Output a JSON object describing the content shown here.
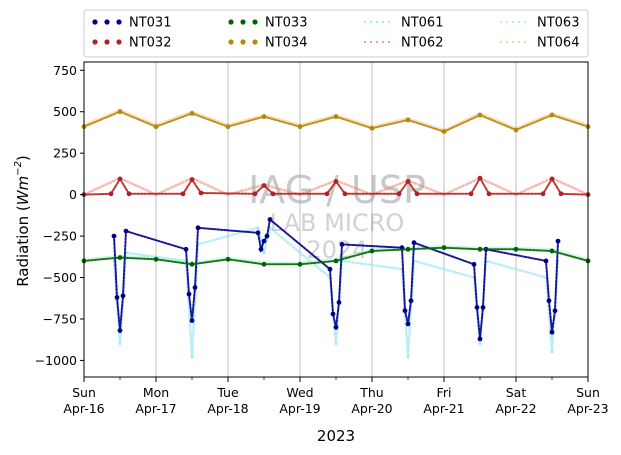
{
  "chart_data": {
    "type": "line",
    "xlabel": "2023",
    "ylabel": "Radiation",
    "ylabel_unit_base": "Wm",
    "ylabel_unit_exp": "−2",
    "ylim": [
      -1100,
      800
    ],
    "yticks": [
      -1000,
      -750,
      -500,
      -250,
      0,
      250,
      500,
      750
    ],
    "ytick_labels": [
      "−1000",
      "−750",
      "−500",
      "−250",
      "0",
      "250",
      "500",
      "750"
    ],
    "xlim": [
      "2023-04-16",
      "2023-04-23"
    ],
    "xticks": [
      {
        "day": "Sun",
        "date": "Apr-16"
      },
      {
        "day": "Mon",
        "date": "Apr-17"
      },
      {
        "day": "Tue",
        "date": "Apr-18"
      },
      {
        "day": "Wed",
        "date": "Apr-19"
      },
      {
        "day": "Thu",
        "date": "Apr-20"
      },
      {
        "day": "Fri",
        "date": "Apr-21"
      },
      {
        "day": "Sat",
        "date": "Apr-22"
      },
      {
        "day": "Sun",
        "date": "Apr-23"
      }
    ],
    "grid": "vertical",
    "legend_position": "top",
    "watermark": [
      "IAG / USP",
      "LAB MICRO",
      "2024"
    ],
    "series": [
      {
        "name": "NT031",
        "color": "#00008b",
        "style": "dots",
        "x": [
          "2023-04-16T10:00",
          "2023-04-16T11:00",
          "2023-04-16T12:00",
          "2023-04-16T13:00",
          "2023-04-16T14:00",
          "2023-04-17T10:00",
          "2023-04-17T11:00",
          "2023-04-17T12:00",
          "2023-04-17T13:00",
          "2023-04-17T14:00",
          "2023-04-18T10:00",
          "2023-04-18T11:00",
          "2023-04-18T12:00",
          "2023-04-18T13:00",
          "2023-04-18T14:00",
          "2023-04-19T10:00",
          "2023-04-19T11:00",
          "2023-04-19T12:00",
          "2023-04-19T13:00",
          "2023-04-19T14:00",
          "2023-04-20T10:00",
          "2023-04-20T11:00",
          "2023-04-20T12:00",
          "2023-04-20T13:00",
          "2023-04-20T14:00",
          "2023-04-21T10:00",
          "2023-04-21T11:00",
          "2023-04-21T12:00",
          "2023-04-21T13:00",
          "2023-04-21T14:00",
          "2023-04-22T10:00",
          "2023-04-22T11:00",
          "2023-04-22T12:00",
          "2023-04-22T13:00",
          "2023-04-22T14:00"
        ],
        "y": [
          -250,
          -620,
          -820,
          -610,
          -220,
          -330,
          -600,
          -760,
          -560,
          -200,
          -230,
          -330,
          -280,
          -250,
          -150,
          -450,
          -720,
          -800,
          -650,
          -300,
          -320,
          -700,
          -780,
          -640,
          -290,
          -420,
          -680,
          -870,
          -680,
          -330,
          -400,
          -640,
          -830,
          -700,
          -280
        ]
      },
      {
        "name": "NT032",
        "color": "#b22222",
        "style": "dots",
        "x": [
          "2023-04-16T00:00",
          "2023-04-16T09:00",
          "2023-04-16T12:00",
          "2023-04-16T15:00",
          "2023-04-17T09:00",
          "2023-04-17T12:00",
          "2023-04-17T15:00",
          "2023-04-18T09:00",
          "2023-04-18T12:00",
          "2023-04-18T15:00",
          "2023-04-19T09:00",
          "2023-04-19T12:00",
          "2023-04-19T15:00",
          "2023-04-20T09:00",
          "2023-04-20T12:00",
          "2023-04-20T15:00",
          "2023-04-21T09:00",
          "2023-04-21T12:00",
          "2023-04-21T15:00",
          "2023-04-22T09:00",
          "2023-04-22T12:00",
          "2023-04-22T15:00",
          "2023-04-23T00:00"
        ],
        "y": [
          0,
          5,
          95,
          5,
          5,
          90,
          10,
          5,
          55,
          5,
          5,
          80,
          5,
          5,
          80,
          5,
          5,
          100,
          5,
          5,
          95,
          5,
          0
        ]
      },
      {
        "name": "NT033",
        "color": "#006400",
        "style": "dots",
        "x": [
          "2023-04-16T00:00",
          "2023-04-16T12:00",
          "2023-04-17T00:00",
          "2023-04-17T12:00",
          "2023-04-18T00:00",
          "2023-04-18T12:00",
          "2023-04-19T00:00",
          "2023-04-19T12:00",
          "2023-04-20T00:00",
          "2023-04-20T12:00",
          "2023-04-21T00:00",
          "2023-04-21T12:00",
          "2023-04-22T00:00",
          "2023-04-22T12:00",
          "2023-04-23T00:00"
        ],
        "y": [
          -400,
          -380,
          -390,
          -420,
          -390,
          -420,
          -420,
          -400,
          -340,
          -330,
          -320,
          -330,
          -330,
          -340,
          -400
        ]
      },
      {
        "name": "NT034",
        "color": "#b8860b",
        "style": "dots",
        "x": [
          "2023-04-16T00:00",
          "2023-04-16T12:00",
          "2023-04-17T00:00",
          "2023-04-17T12:00",
          "2023-04-18T00:00",
          "2023-04-18T12:00",
          "2023-04-19T00:00",
          "2023-04-19T12:00",
          "2023-04-20T00:00",
          "2023-04-20T12:00",
          "2023-04-21T00:00",
          "2023-04-21T12:00",
          "2023-04-22T00:00",
          "2023-04-22T12:00",
          "2023-04-23T00:00"
        ],
        "y": [
          410,
          500,
          410,
          490,
          410,
          470,
          410,
          470,
          400,
          450,
          380,
          480,
          390,
          480,
          410
        ]
      },
      {
        "name": "NT061",
        "color": "#7fe0f0",
        "style": "faint-dots",
        "x": [
          "2023-04-16T10:00",
          "2023-04-16T12:00",
          "2023-04-16T14:00",
          "2023-04-17T10:00",
          "2023-04-17T12:00",
          "2023-04-17T14:00",
          "2023-04-18T10:00",
          "2023-04-18T12:00",
          "2023-04-18T14:00",
          "2023-04-19T10:00",
          "2023-04-19T12:00",
          "2023-04-19T14:00",
          "2023-04-20T10:00",
          "2023-04-20T12:00",
          "2023-04-20T14:00",
          "2023-04-21T10:00",
          "2023-04-21T12:00",
          "2023-04-21T14:00",
          "2023-04-22T10:00",
          "2023-04-22T12:00",
          "2023-04-22T14:00"
        ],
        "y": [
          -400,
          -900,
          -350,
          -400,
          -980,
          -300,
          -200,
          -350,
          -200,
          -500,
          -900,
          -400,
          -450,
          -980,
          -400,
          -500,
          -900,
          -400,
          -500,
          -950,
          -400
        ]
      },
      {
        "name": "NT062",
        "color": "#f08070",
        "style": "faint-dots",
        "x": [
          "2023-04-16T00:00",
          "2023-04-16T12:00",
          "2023-04-17T00:00",
          "2023-04-17T12:00",
          "2023-04-18T00:00",
          "2023-04-18T12:00",
          "2023-04-19T00:00",
          "2023-04-19T12:00",
          "2023-04-20T00:00",
          "2023-04-20T12:00",
          "2023-04-21T00:00",
          "2023-04-21T12:00",
          "2023-04-22T00:00",
          "2023-04-22T12:00",
          "2023-04-23T00:00"
        ],
        "y": [
          0,
          100,
          0,
          100,
          0,
          60,
          0,
          85,
          0,
          85,
          0,
          100,
          0,
          100,
          0
        ]
      },
      {
        "name": "NT063",
        "color": "#a0f0d0",
        "style": "faint-dots",
        "x": [
          "2023-04-16T00:00",
          "2023-04-16T12:00",
          "2023-04-17T00:00",
          "2023-04-17T12:00",
          "2023-04-18T00:00",
          "2023-04-18T12:00",
          "2023-04-19T00:00",
          "2023-04-19T12:00",
          "2023-04-20T00:00",
          "2023-04-20T12:00",
          "2023-04-21T00:00",
          "2023-04-21T12:00",
          "2023-04-22T00:00",
          "2023-04-22T12:00",
          "2023-04-23T00:00"
        ],
        "y": [
          -390,
          -370,
          -380,
          -410,
          -380,
          -410,
          -410,
          -390,
          -330,
          -320,
          -310,
          -320,
          -320,
          -330,
          -390
        ]
      },
      {
        "name": "NT064",
        "color": "#f0c080",
        "style": "faint-dots",
        "x": [
          "2023-04-16T00:00",
          "2023-04-16T12:00",
          "2023-04-17T00:00",
          "2023-04-17T12:00",
          "2023-04-18T00:00",
          "2023-04-18T12:00",
          "2023-04-19T00:00",
          "2023-04-19T12:00",
          "2023-04-20T00:00",
          "2023-04-20T12:00",
          "2023-04-21T00:00",
          "2023-04-21T12:00",
          "2023-04-22T00:00",
          "2023-04-22T12:00",
          "2023-04-23T00:00"
        ],
        "y": [
          420,
          510,
          420,
          500,
          420,
          480,
          420,
          480,
          410,
          460,
          390,
          490,
          400,
          490,
          420
        ]
      }
    ]
  }
}
